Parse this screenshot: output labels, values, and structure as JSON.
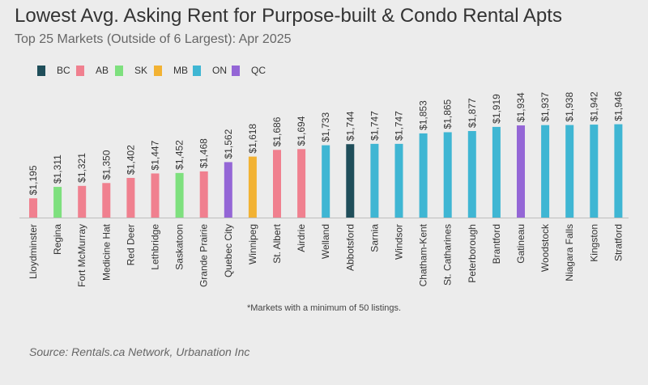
{
  "title": "Lowest Avg. Asking Rent for Purpose-built & Condo Rental Apts",
  "subtitle": "Top 25 Markets (Outside of 6 Largest): Apr 2025",
  "note": "*Markets with a minimum of 50 listings.",
  "source": "Source: Rentals.ca Network, Urbanation Inc",
  "legend": [
    {
      "label": "BC",
      "color": "#1f4e5a"
    },
    {
      "label": "AB",
      "color": "#f0808f"
    },
    {
      "label": "SK",
      "color": "#7ee07e"
    },
    {
      "label": "MB",
      "color": "#f2b233"
    },
    {
      "label": "ON",
      "color": "#3fb6d3"
    },
    {
      "label": "QC",
      "color": "#9466d6"
    }
  ],
  "chart_data": {
    "type": "bar",
    "title": "Lowest Avg. Asking Rent for Purpose-built & Condo Rental Apts",
    "subtitle": "Top 25 Markets (Outside of 6 Largest): Apr 2025",
    "categories": [
      "Lloydminster",
      "Regina",
      "Fort McMurray",
      "Medicine Hat",
      "Red Deer",
      "Lethbridge",
      "Saskatoon",
      "Grande Prairie",
      "Quebec City",
      "Winnipeg",
      "St. Albert",
      "Airdrie",
      "Welland",
      "Abbotsford",
      "Sarnia",
      "Windsor",
      "Chatham-Kent",
      "St. Catharines",
      "Peterborough",
      "Brantford",
      "Gatineau",
      "Woodstock",
      "Niagara Falls",
      "Kingston",
      "Stratford"
    ],
    "values": [
      1195,
      1311,
      1321,
      1350,
      1402,
      1447,
      1452,
      1468,
      1562,
      1618,
      1686,
      1694,
      1733,
      1744,
      1747,
      1747,
      1853,
      1865,
      1877,
      1919,
      1934,
      1937,
      1938,
      1942,
      1946
    ],
    "value_labels": [
      "$1,195",
      "$1,311",
      "$1,321",
      "$1,350",
      "$1,402",
      "$1,447",
      "$1,452",
      "$1,468",
      "$1,562",
      "$1,618",
      "$1,686",
      "$1,694",
      "$1,733",
      "$1,744",
      "$1,747",
      "$1,747",
      "$1,853",
      "$1,865",
      "$1,877",
      "$1,919",
      "$1,934",
      "$1,937",
      "$1,938",
      "$1,942",
      "$1,946"
    ],
    "province": [
      "AB",
      "SK",
      "AB",
      "AB",
      "AB",
      "AB",
      "SK",
      "AB",
      "QC",
      "MB",
      "AB",
      "AB",
      "ON",
      "BC",
      "ON",
      "ON",
      "ON",
      "ON",
      "ON",
      "ON",
      "QC",
      "ON",
      "ON",
      "ON",
      "ON"
    ],
    "ylim": [
      0,
      2000
    ],
    "xlabel": "",
    "ylabel": "",
    "grid": false,
    "legend_position": "top-left"
  }
}
